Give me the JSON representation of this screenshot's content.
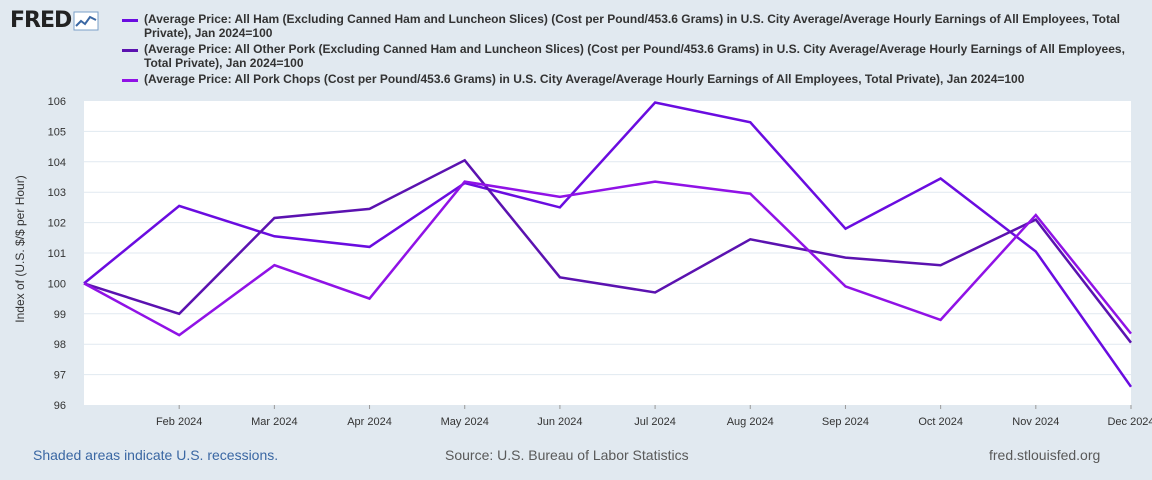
{
  "header": {
    "logo_text": "FRED"
  },
  "footer": {
    "recession_note": "Shaded areas indicate U.S. recessions.",
    "source": "Source: U.S. Bureau of Labor Statistics",
    "site": "fred.stlouisfed.org"
  },
  "colors": {
    "background": "#e1e9f0",
    "plot_bg": "#ffffff",
    "grid": "#e1e9f0"
  },
  "chart_data": {
    "type": "line",
    "title": "",
    "xlabel": "",
    "ylabel": "Index of (U.S. $/$ per Hour)",
    "ylim": [
      96,
      106
    ],
    "yticks": [
      "96",
      "97",
      "98",
      "99",
      "100",
      "101",
      "102",
      "103",
      "104",
      "105",
      "106"
    ],
    "categories": [
      "Jan 2024",
      "Feb 2024",
      "Mar 2024",
      "Apr 2024",
      "May 2024",
      "Jun 2024",
      "Jul 2024",
      "Aug 2024",
      "Sep 2024",
      "Oct 2024",
      "Nov 2024",
      "Dec 2024"
    ],
    "xtick_labels": [
      "Feb 2024",
      "Mar 2024",
      "Apr 2024",
      "May 2024",
      "Jun 2024",
      "Jul 2024",
      "Aug 2024",
      "Sep 2024",
      "Oct 2024",
      "Nov 2024",
      "Dec 2024"
    ],
    "series": [
      {
        "name": "(Average Price: All Ham (Excluding Canned Ham and Luncheon Slices) (Cost per Pound/453.6 Grams) in U.S. City Average/Average Hourly Earnings of All Employees, Total Private), Jan 2024=100",
        "color": "#6a0ce0",
        "values": [
          100.0,
          102.55,
          101.55,
          101.2,
          103.3,
          102.5,
          105.95,
          105.3,
          101.8,
          103.45,
          101.05,
          96.6
        ]
      },
      {
        "name": "(Average Price: All Other Pork (Excluding Canned Ham and Luncheon Slices) (Cost per Pound/453.6 Grams) in U.S. City Average/Average Hourly Earnings of All Employees, Total Private), Jan 2024=100",
        "color": "#5b12b0",
        "values": [
          100.0,
          99.0,
          102.15,
          102.45,
          104.05,
          100.2,
          99.7,
          101.45,
          100.85,
          100.6,
          102.1,
          98.05
        ]
      },
      {
        "name": "(Average Price: All Pork Chops (Cost per Pound/453.6 Grams) in U.S. City Average/Average Hourly Earnings of All Employees, Total Private), Jan 2024=100",
        "color": "#9012e6",
        "values": [
          100.0,
          98.3,
          100.6,
          99.5,
          103.35,
          102.85,
          103.35,
          102.95,
          99.9,
          98.8,
          102.25,
          98.35
        ]
      }
    ]
  }
}
